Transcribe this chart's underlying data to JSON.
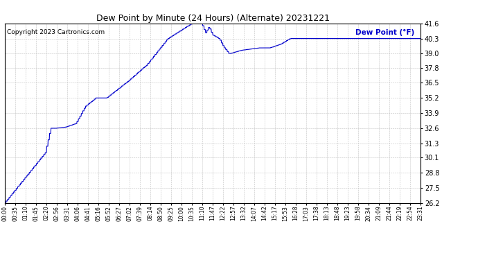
{
  "title": "Dew Point by Minute (24 Hours) (Alternate) 20231221",
  "ylabel": "Dew Point (°F)",
  "copyright": "Copyright 2023 Cartronics.com",
  "line_color": "#0000cc",
  "bg_color": "#ffffff",
  "grid_color": "#bbbbbb",
  "title_color": "#000000",
  "ylabel_color": "#0000cc",
  "copyright_color": "#000000",
  "ylim": [
    26.2,
    41.6
  ],
  "yticks": [
    26.2,
    27.5,
    28.8,
    30.1,
    31.3,
    32.6,
    33.9,
    35.2,
    36.5,
    37.8,
    39.0,
    40.3,
    41.6
  ],
  "x_tick_labels": [
    "00:00",
    "00:35",
    "01:10",
    "01:45",
    "02:20",
    "02:56",
    "03:31",
    "04:06",
    "04:41",
    "05:16",
    "05:52",
    "06:27",
    "07:02",
    "07:39",
    "08:14",
    "08:50",
    "09:25",
    "10:00",
    "10:35",
    "11:10",
    "11:47",
    "12:22",
    "12:57",
    "13:32",
    "14:07",
    "14:42",
    "15:17",
    "15:53",
    "16:28",
    "17:03",
    "17:38",
    "18:13",
    "18:48",
    "19:23",
    "19:58",
    "20:34",
    "21:09",
    "21:44",
    "22:19",
    "22:54",
    "23:31"
  ]
}
